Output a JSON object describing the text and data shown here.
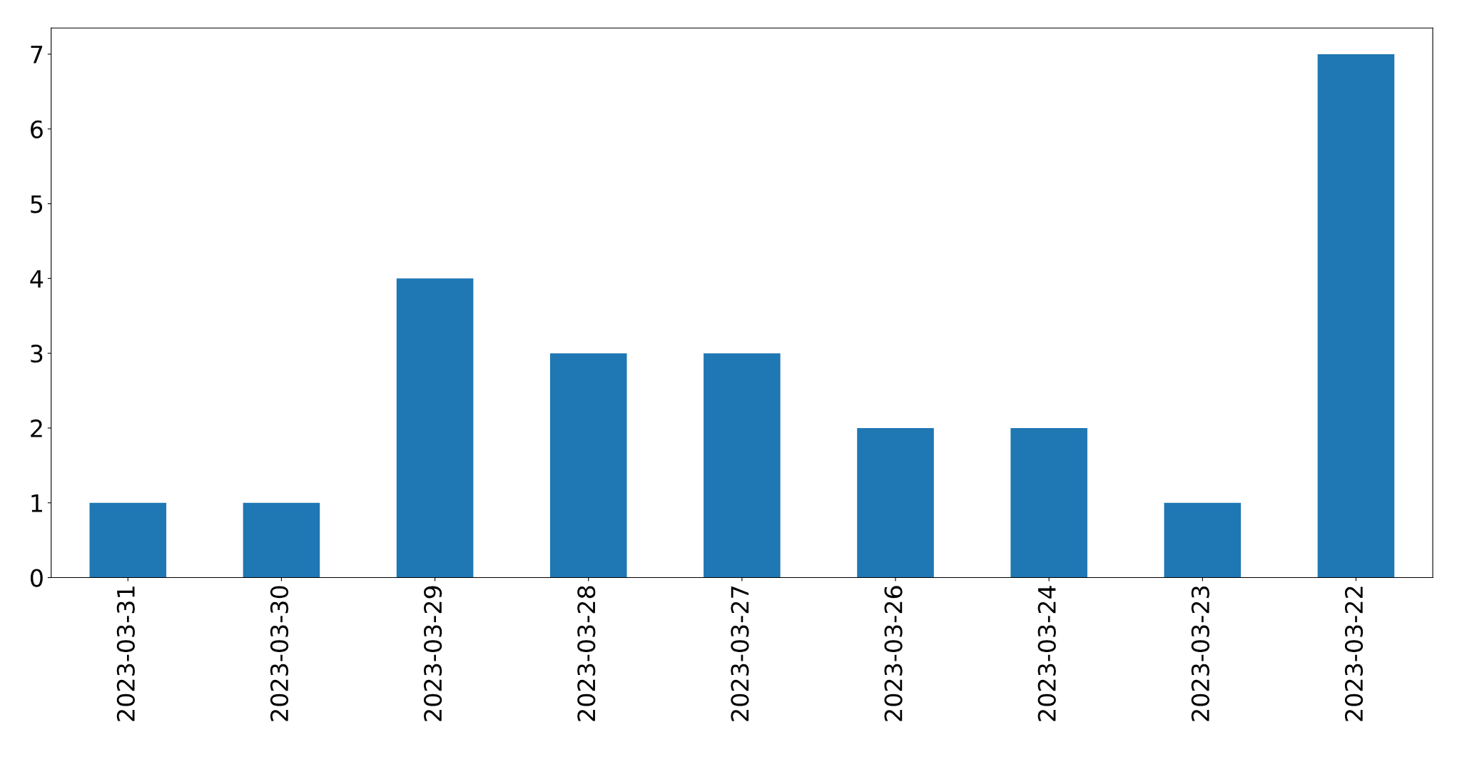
{
  "chart_data": {
    "type": "bar",
    "categories": [
      "2023-03-31",
      "2023-03-30",
      "2023-03-29",
      "2023-03-28",
      "2023-03-27",
      "2023-03-26",
      "2023-03-24",
      "2023-03-23",
      "2023-03-22"
    ],
    "values": [
      1,
      1,
      4,
      3,
      3,
      2,
      2,
      1,
      7
    ],
    "color": "#1f77b4",
    "ylim": [
      0,
      7.35
    ],
    "yticks": [
      0,
      1,
      2,
      3,
      4,
      5,
      6,
      7
    ],
    "grid": false,
    "legend": false
  }
}
